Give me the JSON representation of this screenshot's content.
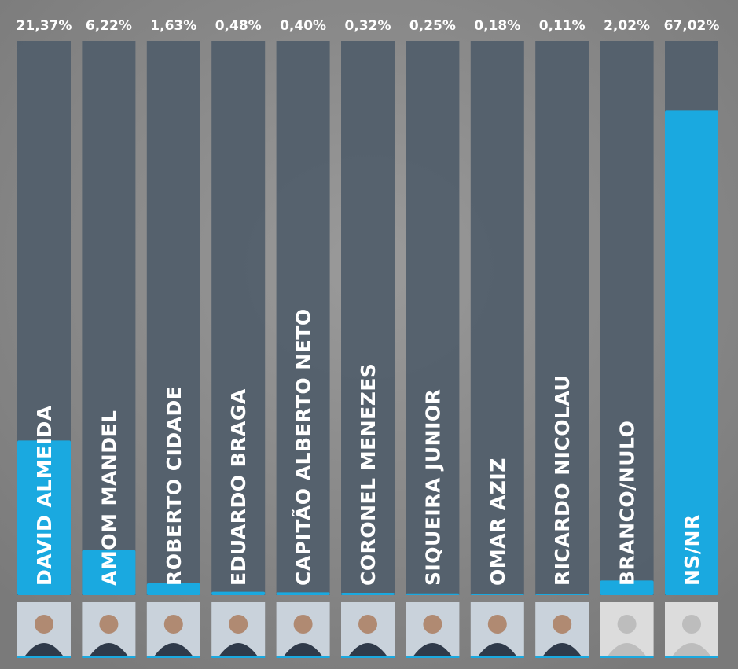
{
  "chart_data": {
    "type": "bar",
    "categories": [
      "DAVID ALMEIDA",
      "AMOM MANDEL",
      "ROBERTO CIDADE",
      "EDUARDO BRAGA",
      "CAPITÃO ALBERTO NETO",
      "CORONEL MENEZES",
      "SIQUEIRA JUNIOR",
      "OMAR AZIZ",
      "RICARDO NICOLAU",
      "BRANCO/NULO",
      "NS/NR"
    ],
    "values": [
      21.37,
      6.22,
      1.63,
      0.48,
      0.4,
      0.32,
      0.25,
      0.18,
      0.11,
      2.02,
      67.02
    ],
    "value_labels": [
      "21,37%",
      "6,22%",
      "1,63%",
      "0,48%",
      "0,40%",
      "0,32%",
      "0,25%",
      "0,18%",
      "0,11%",
      "2,02%",
      "67,02%"
    ],
    "color": "#1aa9e0"
  }
}
